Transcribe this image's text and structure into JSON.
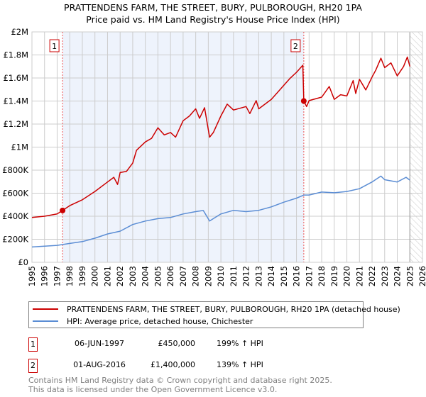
{
  "title": "PRATTENDENS FARM, THE STREET, BURY, PULBOROUGH, RH20 1PA",
  "subtitle": "Price paid vs. HM Land Registry's House Price Index (HPI)",
  "colors": {
    "property": "#cc0000",
    "hpi": "#5b8dd4",
    "shade": "#eef3fc"
  },
  "chart_data": {
    "type": "line",
    "title": "PRATTENDENS FARM, THE STREET, BURY, PULBOROUGH, RH20 1PA",
    "xlim": [
      1995,
      2026
    ],
    "ylim": [
      0,
      2000000
    ],
    "xticks": [
      "1995",
      "1996",
      "1997",
      "1998",
      "1999",
      "2000",
      "2001",
      "2002",
      "2003",
      "2004",
      "2005",
      "2006",
      "2007",
      "2008",
      "2009",
      "2010",
      "2011",
      "2012",
      "2013",
      "2014",
      "2015",
      "2016",
      "2017",
      "2018",
      "2019",
      "2020",
      "2021",
      "2022",
      "2023",
      "2024",
      "2025",
      "2026"
    ],
    "yticks": [
      {
        "v": 0,
        "label": "£0"
      },
      {
        "v": 200000,
        "label": "£200K"
      },
      {
        "v": 400000,
        "label": "£400K"
      },
      {
        "v": 600000,
        "label": "£600K"
      },
      {
        "v": 800000,
        "label": "£800K"
      },
      {
        "v": 1000000,
        "label": "£1M"
      },
      {
        "v": 1200000,
        "label": "£1.2M"
      },
      {
        "v": 1400000,
        "label": "£1.4M"
      },
      {
        "v": 1600000,
        "label": "£1.6M"
      },
      {
        "v": 1800000,
        "label": "£1.8M"
      },
      {
        "v": 2000000,
        "label": "£2M"
      }
    ],
    "grid": true,
    "shaded_range": [
      1997.43,
      2016.58
    ],
    "forecast_hatch_from": 2025.0,
    "series": [
      {
        "name": "PRATTENDENS FARM, THE STREET, BURY, PULBOROUGH, RH20 1PA (detached house)",
        "x": [
          1995,
          1996,
          1997,
          1997.43,
          1998,
          1999,
          2000,
          2001,
          2001.5,
          2001.8,
          2002,
          2002.5,
          2003,
          2003.3,
          2004,
          2004.5,
          2005,
          2005.5,
          2006,
          2006.4,
          2007,
          2007.5,
          2008,
          2008.3,
          2008.7,
          2009.1,
          2009.4,
          2010,
          2010.5,
          2011,
          2012,
          2012.3,
          2012.8,
          2013,
          2014,
          2014.5,
          2015,
          2015.5,
          2016,
          2016.5,
          2016.58,
          2016.8,
          2017,
          2018,
          2018.6,
          2019,
          2019.5,
          2020,
          2020.5,
          2020.7,
          2021,
          2021.5,
          2022,
          2022.3,
          2022.7,
          2023,
          2023.5,
          2024,
          2024.5,
          2024.8,
          2025
        ],
        "y": [
          389000,
          400000,
          420000,
          450000,
          492000,
          543000,
          615000,
          697000,
          738000,
          676000,
          779000,
          789000,
          861000,
          973000,
          1045000,
          1076000,
          1168000,
          1106000,
          1127000,
          1086000,
          1229000,
          1270000,
          1332000,
          1250000,
          1342000,
          1086000,
          1127000,
          1270000,
          1373000,
          1322000,
          1352000,
          1291000,
          1404000,
          1332000,
          1414000,
          1475000,
          1537000,
          1598000,
          1649000,
          1711000,
          1400000,
          1352000,
          1404000,
          1434000,
          1526000,
          1414000,
          1455000,
          1444000,
          1578000,
          1465000,
          1588000,
          1496000,
          1608000,
          1670000,
          1772000,
          1690000,
          1731000,
          1618000,
          1700000,
          1782000,
          1700000
        ]
      },
      {
        "name": "HPI: Average price, detached house, Chichester",
        "x": [
          1995,
          1997,
          1998,
          1999,
          2000,
          2001,
          2002,
          2003,
          2004,
          2005,
          2006,
          2007,
          2008,
          2008.6,
          2009.1,
          2009.4,
          2010,
          2011,
          2012,
          2013,
          2014,
          2015,
          2016,
          2016.6,
          2017,
          2018,
          2019,
          2020,
          2021,
          2022,
          2022.7,
          2023,
          2024,
          2024.7,
          2025
        ],
        "y": [
          133000,
          147000,
          164000,
          180000,
          209000,
          246000,
          270000,
          328000,
          358000,
          379000,
          389000,
          420000,
          440000,
          450000,
          358000,
          379000,
          420000,
          451000,
          440000,
          451000,
          481000,
          522000,
          557000,
          584000,
          584000,
          610000,
          604000,
          615000,
          639000,
          697000,
          748000,
          717000,
          697000,
          738000,
          713000
        ]
      }
    ],
    "annotations": [
      {
        "label": "1",
        "x": 1997.43,
        "y": 450000
      },
      {
        "label": "2",
        "x": 2016.58,
        "y": 1400000
      }
    ]
  },
  "legend": {
    "property": "PRATTENDENS FARM, THE STREET, BURY, PULBOROUGH, RH20 1PA (detached house)",
    "hpi": "HPI: Average price, detached house, Chichester"
  },
  "transactions": [
    {
      "num": "1",
      "date": "06-JUN-1997",
      "price": "£450,000",
      "hpi": "199% ↑ HPI"
    },
    {
      "num": "2",
      "date": "01-AUG-2016",
      "price": "£1,400,000",
      "hpi": "139% ↑ HPI"
    }
  ],
  "footer": {
    "line1": "Contains HM Land Registry data © Crown copyright and database right 2025.",
    "line2": "This data is licensed under the Open Government Licence v3.0."
  }
}
